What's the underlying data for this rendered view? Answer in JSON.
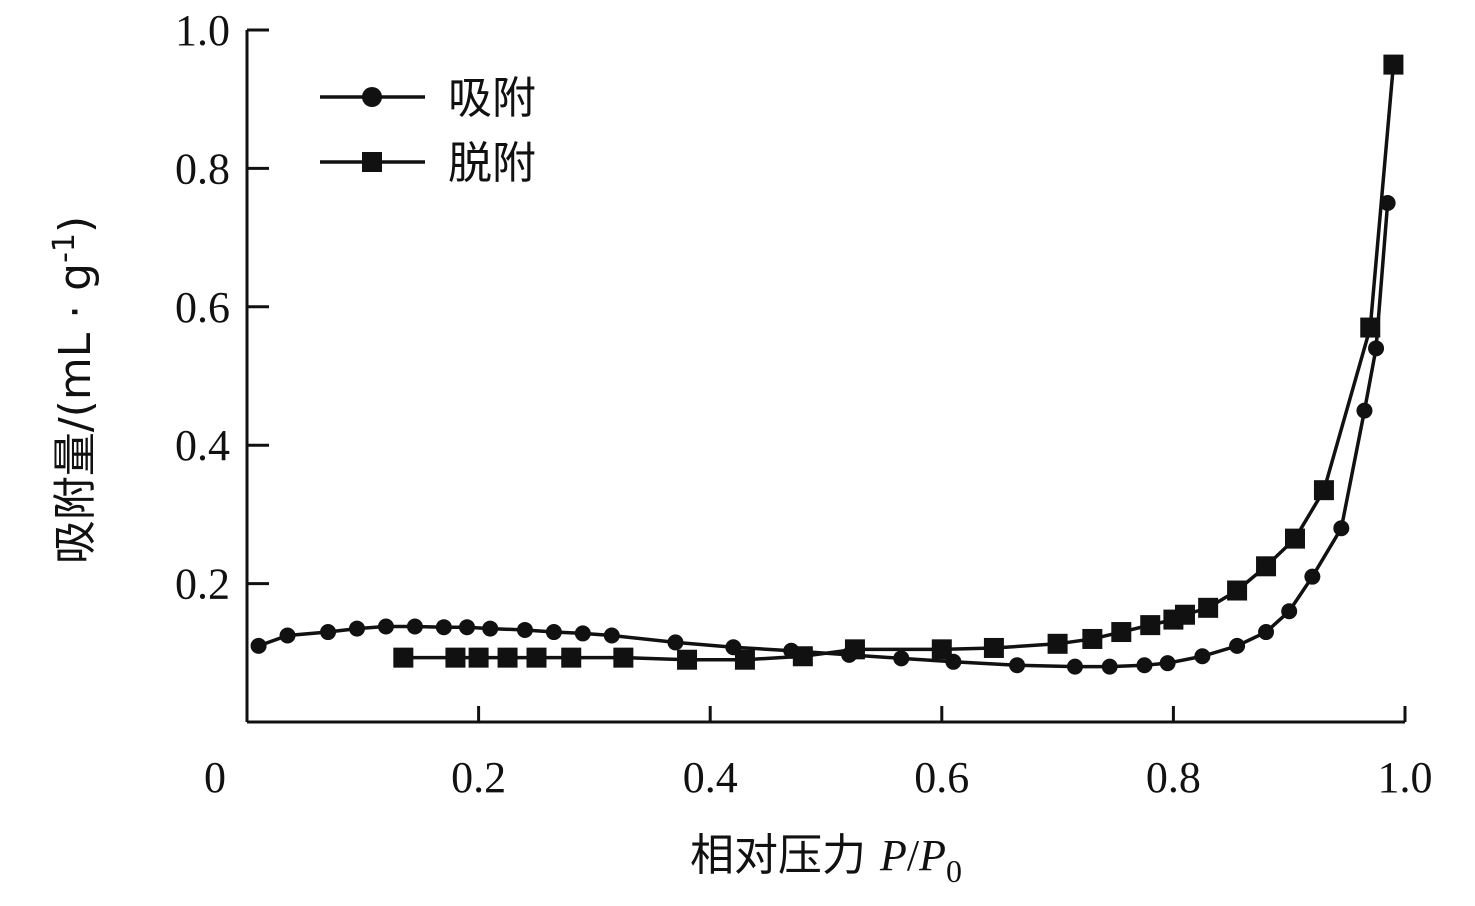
{
  "chart_data": {
    "type": "line",
    "xlabel": "相对压力 P/P0",
    "xlabel_parts": {
      "prefix": "相对压力 ",
      "p": "P",
      "slash": "/",
      "p0": "P",
      "sub": "0"
    },
    "ylabel": "吸附量/(mL · g-1)",
    "ylabel_parts": {
      "main": "吸附量/(mL · g",
      "sup": "-1",
      "close": ")"
    },
    "xlim": [
      0,
      1.0
    ],
    "ylim": [
      0,
      1.0
    ],
    "x_ticks": [
      0,
      0.2,
      0.4,
      0.6,
      0.8,
      1.0
    ],
    "x_tick_labels": [
      "0",
      "0.2",
      "0.4",
      "0.6",
      "0.8",
      "1.0"
    ],
    "y_ticks": [
      0.2,
      0.4,
      0.6,
      0.8,
      1.0
    ],
    "y_tick_labels": [
      "0.2",
      "0.4",
      "0.6",
      "0.8",
      "1.0"
    ],
    "grid": false,
    "legend": {
      "position": "top-left"
    },
    "series": [
      {
        "name": "吸附",
        "marker": "circle",
        "color": "#111111",
        "x": [
          0.01,
          0.035,
          0.07,
          0.095,
          0.12,
          0.145,
          0.17,
          0.19,
          0.21,
          0.24,
          0.265,
          0.29,
          0.315,
          0.37,
          0.42,
          0.47,
          0.52,
          0.565,
          0.61,
          0.665,
          0.715,
          0.745,
          0.775,
          0.795,
          0.825,
          0.855,
          0.88,
          0.9,
          0.92,
          0.945,
          0.965,
          0.975,
          0.985
        ],
        "y": [
          0.11,
          0.125,
          0.13,
          0.135,
          0.138,
          0.138,
          0.137,
          0.137,
          0.135,
          0.133,
          0.13,
          0.128,
          0.125,
          0.115,
          0.108,
          0.103,
          0.097,
          0.092,
          0.087,
          0.082,
          0.08,
          0.08,
          0.082,
          0.085,
          0.095,
          0.11,
          0.13,
          0.16,
          0.21,
          0.28,
          0.45,
          0.54,
          0.75
        ]
      },
      {
        "name": "脱附",
        "marker": "square",
        "color": "#111111",
        "x": [
          0.135,
          0.18,
          0.2,
          0.225,
          0.25,
          0.28,
          0.325,
          0.38,
          0.43,
          0.48,
          0.525,
          0.6,
          0.645,
          0.7,
          0.73,
          0.755,
          0.78,
          0.8,
          0.81,
          0.83,
          0.855,
          0.88,
          0.905,
          0.93,
          0.97,
          0.99
        ],
        "y": [
          0.093,
          0.093,
          0.093,
          0.093,
          0.093,
          0.093,
          0.093,
          0.09,
          0.09,
          0.095,
          0.105,
          0.105,
          0.107,
          0.113,
          0.12,
          0.13,
          0.14,
          0.148,
          0.155,
          0.165,
          0.19,
          0.225,
          0.265,
          0.335,
          0.57,
          0.95
        ]
      }
    ]
  }
}
